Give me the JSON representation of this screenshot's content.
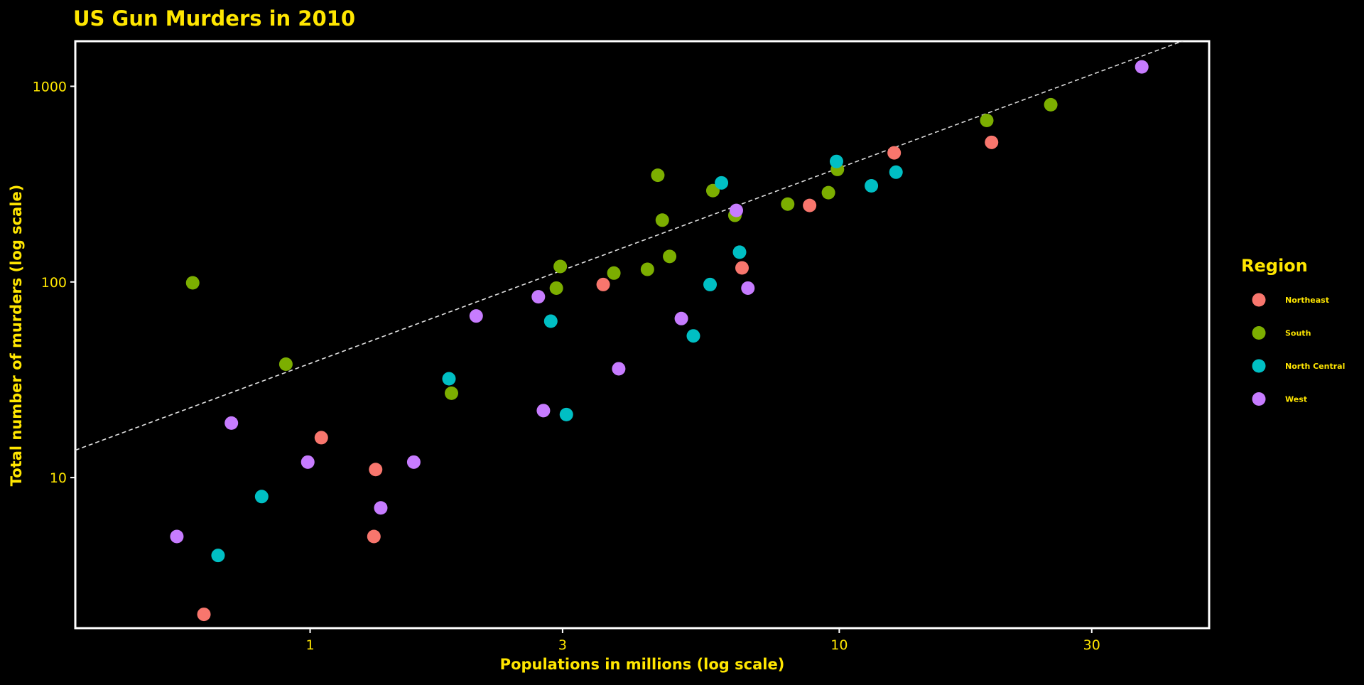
{
  "chart_data": {
    "type": "scatter",
    "title": "US Gun Murders in 2010",
    "xlabel": "Populations in millions (log scale)",
    "ylabel": "Total number of murders (log scale)",
    "x_scale": "log10",
    "y_scale": "log10",
    "xlim": [
      0.36,
      50
    ],
    "ylim": [
      1.7,
      1700
    ],
    "x_ticks": [
      1,
      3,
      10,
      30
    ],
    "x_tick_labels": [
      "1",
      "3",
      "10",
      "30"
    ],
    "y_ticks": [
      10,
      100,
      1000
    ],
    "y_tick_labels": [
      "10",
      "100",
      "1000"
    ],
    "grid": false,
    "background": "#000000",
    "text_color": "#FFE600",
    "panel_border_color": "#FFFFFF",
    "legend": {
      "title": "Region",
      "position": "right"
    },
    "reference_line": {
      "style": "dashed",
      "color": "#DDDDDD",
      "description": "y = r * x, r = total murders / total population",
      "points": [
        [
          0.36,
          13.8
        ],
        [
          50,
          1912
        ]
      ]
    },
    "series": [
      {
        "name": "Northeast",
        "color": "#F8766D",
        "points": [
          [
            0.63,
            2
          ],
          [
            1.05,
            16
          ],
          [
            1.33,
            11
          ],
          [
            1.32,
            5
          ],
          [
            3.58,
            97
          ],
          [
            6.55,
            118
          ],
          [
            8.79,
            246
          ],
          [
            12.7,
            457
          ],
          [
            19.4,
            517
          ]
        ]
      },
      {
        "name": "South",
        "color": "#7CAE00",
        "points": [
          [
            0.6,
            99
          ],
          [
            0.9,
            38
          ],
          [
            1.85,
            27
          ],
          [
            2.92,
            93
          ],
          [
            2.97,
            120
          ],
          [
            3.75,
            111
          ],
          [
            4.34,
            116
          ],
          [
            4.54,
            351
          ],
          [
            4.63,
            207
          ],
          [
            4.78,
            135
          ],
          [
            5.77,
            293
          ],
          [
            6.35,
            219
          ],
          [
            7.99,
            250
          ],
          [
            9.54,
            286
          ],
          [
            9.92,
            376
          ],
          [
            19.0,
            669
          ],
          [
            25.1,
            805
          ]
        ]
      },
      {
        "name": "North Central",
        "color": "#00BFC4",
        "points": [
          [
            0.67,
            4
          ],
          [
            0.81,
            8
          ],
          [
            1.83,
            32
          ],
          [
            2.85,
            63
          ],
          [
            3.05,
            21
          ],
          [
            5.3,
            53
          ],
          [
            5.7,
            97
          ],
          [
            5.99,
            321
          ],
          [
            6.48,
            142
          ],
          [
            9.88,
            413
          ],
          [
            11.5,
            310
          ],
          [
            12.8,
            364
          ]
        ]
      },
      {
        "name": "West",
        "color": "#C77CFF",
        "points": [
          [
            0.56,
            5
          ],
          [
            0.71,
            19
          ],
          [
            0.99,
            12
          ],
          [
            1.36,
            7
          ],
          [
            1.57,
            12
          ],
          [
            2.06,
            67
          ],
          [
            2.7,
            84
          ],
          [
            2.76,
            22
          ],
          [
            3.83,
            36
          ],
          [
            5.03,
            65
          ],
          [
            6.39,
            232
          ],
          [
            6.72,
            93
          ],
          [
            37.3,
            1257
          ]
        ]
      }
    ]
  }
}
